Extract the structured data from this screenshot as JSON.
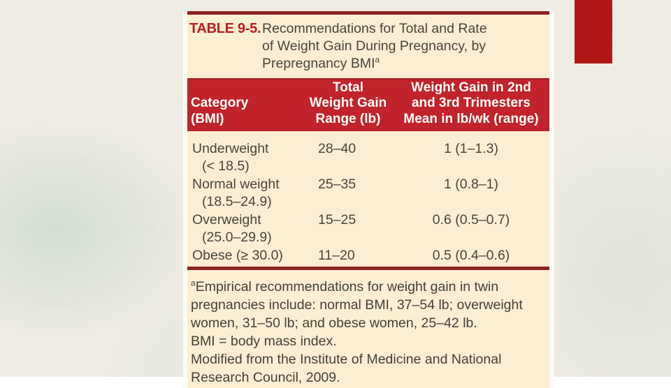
{
  "slide": {
    "background_color": "#f2efe6",
    "accent_rectangle_color": "#b11717"
  },
  "figure": {
    "colors": {
      "table_background": "#fbeed2",
      "header_background": "#c2232b",
      "rule_maroon": "#8e2320",
      "title_red": "#b91e27",
      "header_text": "#ffffff",
      "body_text": "#4a443c"
    },
    "title": {
      "label": "TABLE 9-5.",
      "text": "Recommendations for Total and Rate\nof Weight Gain During Pregnancy, by\nPrepregnancy BMI",
      "superscript": "a"
    },
    "header": {
      "category": "Category\n(BMI)",
      "total": "Total\nWeight Gain\nRange (lb)",
      "trimester": "Weight Gain in 2nd\nand 3rd Trimesters\nMean in lb/wk (range)"
    },
    "rows": [
      {
        "category": "Underweight",
        "category2": "(< 18.5)",
        "total": "28–40",
        "mean": "1 (1–1.3)"
      },
      {
        "category": "Normal weight",
        "category2": "(18.5–24.9)",
        "total": "25–35",
        "mean": "1 (0.8–1)"
      },
      {
        "category": "Overweight",
        "category2": "(25.0–29.9)",
        "total": "15–25",
        "mean": "0.6 (0.5–0.7)"
      },
      {
        "category": "Obese (≥ 30.0)",
        "category2": "",
        "total": "11–20",
        "mean": "0.5 (0.4–0.6)"
      }
    ],
    "footnotes": {
      "superscript": "a",
      "note1": "Empirical recommendations for weight gain in twin\npregnancies include: normal BMI, 37–54 lb; overweight\nwomen, 31–50 lb; and obese women, 25–42 lb.",
      "note2": "BMI = body mass index.",
      "note3": "Modified from the Institute of Medicine and National\nResearch Council, 2009."
    }
  },
  "chart_data": {
    "type": "table",
    "title": "TABLE 9-5. Recommendations for Total and Rate of Weight Gain During Pregnancy, by Prepregnancy BMI",
    "columns": [
      "Category (BMI)",
      "Total Weight Gain Range (lb)",
      "Weight Gain in 2nd and 3rd Trimesters Mean in lb/wk (range)"
    ],
    "rows": [
      [
        "Underweight (< 18.5)",
        "28–40",
        "1 (1–1.3)"
      ],
      [
        "Normal weight (18.5–24.9)",
        "25–35",
        "1 (0.8–1)"
      ],
      [
        "Overweight (25.0–29.9)",
        "15–25",
        "0.6 (0.5–0.7)"
      ],
      [
        "Obese (≥ 30.0)",
        "11–20",
        "0.5 (0.4–0.6)"
      ]
    ]
  }
}
